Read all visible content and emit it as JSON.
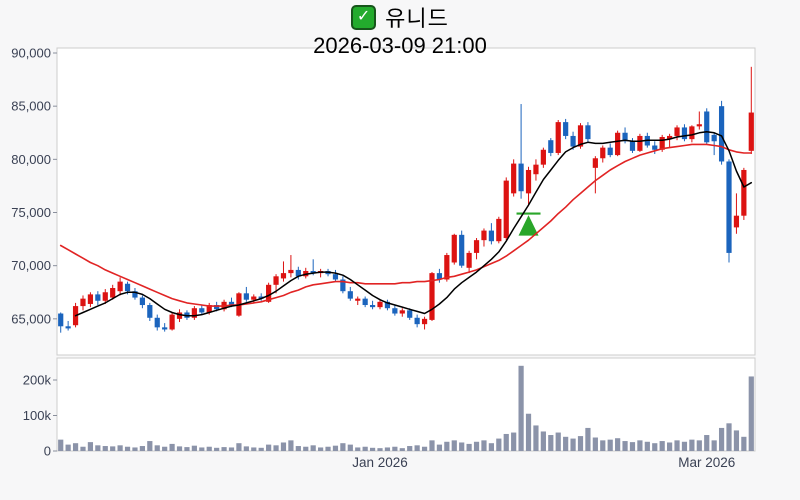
{
  "header": {
    "check_icon": "✓",
    "title": "유니드",
    "datetime": "2026-03-09 21:00"
  },
  "colors": {
    "up_candle": "#dc1312",
    "down_candle": "#1b64bd",
    "ma_short": "#000000",
    "ma_long": "#e12424",
    "volume_bar": "#8b93a9",
    "marker_green": "#2aa62a",
    "panel_border": "#cccccc",
    "panel_bg": "#ffffff",
    "page_bg": "#f7f7f8",
    "axis_text": "#3a4154",
    "title_text": "#000000",
    "check_bg": "#23ab2d"
  },
  "chart_data": {
    "type": "candlestick_with_volume",
    "title": "유니드",
    "subtitle": "2026-03-09 21:00",
    "legend_position": "none",
    "grid": false,
    "price_ylim": [
      61600,
      90470
    ],
    "price_yticks": [
      {
        "label": "90,000",
        "value": 90000
      },
      {
        "label": "85,000",
        "value": 85000
      },
      {
        "label": "80,000",
        "value": 80000
      },
      {
        "label": "75,000",
        "value": 75000
      },
      {
        "label": "70,000",
        "value": 70000
      },
      {
        "label": "65,000",
        "value": 65000
      }
    ],
    "volume_ylim": [
      0,
      262000
    ],
    "volume_yticks": [
      {
        "label": "200k",
        "value": 200000
      },
      {
        "label": "100k",
        "value": 100000
      },
      {
        "label": "0",
        "value": 0
      }
    ],
    "xticks": [
      {
        "label": "Jan 2026",
        "index": 43
      },
      {
        "label": "Mar 2026",
        "index": 87
      }
    ],
    "candles": [
      [
        65500,
        65600,
        63700,
        64300
      ],
      [
        64300,
        64800,
        63900,
        64100
      ],
      [
        64400,
        66500,
        64200,
        66200
      ],
      [
        66200,
        67200,
        65800,
        66900
      ],
      [
        66400,
        67500,
        66100,
        67300
      ],
      [
        67300,
        67600,
        66300,
        66700
      ],
      [
        66700,
        67800,
        66400,
        67500
      ],
      [
        67000,
        68200,
        66800,
        67900
      ],
      [
        67600,
        68900,
        67200,
        68500
      ],
      [
        68300,
        68500,
        67300,
        67600
      ],
      [
        67600,
        67900,
        66800,
        67000
      ],
      [
        67000,
        67200,
        66000,
        66300
      ],
      [
        66300,
        66500,
        64800,
        65100
      ],
      [
        65100,
        65400,
        63900,
        64200
      ],
      [
        64200,
        64600,
        63800,
        64000
      ],
      [
        64000,
        65600,
        63900,
        65400
      ],
      [
        65000,
        65900,
        64700,
        65600
      ],
      [
        65600,
        65800,
        64900,
        65100
      ],
      [
        65100,
        66200,
        64900,
        66000
      ],
      [
        66000,
        66300,
        65400,
        65600
      ],
      [
        65600,
        66500,
        65400,
        66300
      ],
      [
        66300,
        66600,
        65700,
        65900
      ],
      [
        65900,
        66800,
        65700,
        66600
      ],
      [
        66600,
        67000,
        66100,
        66300
      ],
      [
        65300,
        67500,
        65200,
        67400
      ],
      [
        67400,
        68000,
        66600,
        66800
      ],
      [
        66800,
        67300,
        66500,
        67100
      ],
      [
        67100,
        67400,
        66700,
        66900
      ],
      [
        66600,
        68400,
        66500,
        68200
      ],
      [
        68200,
        69200,
        67400,
        69000
      ],
      [
        68800,
        70400,
        68500,
        69300
      ],
      [
        69300,
        71000,
        68900,
        69600
      ],
      [
        69600,
        69900,
        68700,
        69000
      ],
      [
        69000,
        69800,
        68800,
        69500
      ],
      [
        69500,
        70600,
        69100,
        69300
      ],
      [
        69300,
        69700,
        68900,
        69500
      ],
      [
        69500,
        69700,
        69000,
        69200
      ],
      [
        69200,
        69600,
        68500,
        68700
      ],
      [
        68700,
        69000,
        67400,
        67600
      ],
      [
        67600,
        68000,
        66700,
        66900
      ],
      [
        66700,
        67100,
        66300,
        66900
      ],
      [
        66900,
        67100,
        66100,
        66300
      ],
      [
        66300,
        66700,
        65900,
        66100
      ],
      [
        66100,
        66800,
        65900,
        66600
      ],
      [
        66600,
        66800,
        65800,
        66000
      ],
      [
        66000,
        66300,
        65300,
        65500
      ],
      [
        65500,
        66000,
        65200,
        65800
      ],
      [
        65800,
        66000,
        64900,
        65100
      ],
      [
        65100,
        65400,
        64200,
        64500
      ],
      [
        64500,
        65200,
        64000,
        65000
      ],
      [
        64900,
        69400,
        64800,
        69300
      ],
      [
        69300,
        69700,
        68400,
        68700
      ],
      [
        68700,
        71200,
        68500,
        71000
      ],
      [
        70300,
        73000,
        70100,
        72900
      ],
      [
        72900,
        73300,
        69800,
        70000
      ],
      [
        69800,
        71400,
        69300,
        71200
      ],
      [
        71200,
        72600,
        70600,
        72400
      ],
      [
        72400,
        73500,
        71800,
        73300
      ],
      [
        73300,
        74000,
        72000,
        72300
      ],
      [
        72300,
        74600,
        72100,
        74400
      ],
      [
        72600,
        78300,
        72400,
        78000
      ],
      [
        76800,
        80000,
        76500,
        79600
      ],
      [
        79600,
        85200,
        76300,
        77000
      ],
      [
        76800,
        79300,
        75600,
        79000
      ],
      [
        78600,
        80000,
        78000,
        79500
      ],
      [
        79500,
        81100,
        79200,
        80900
      ],
      [
        81800,
        82000,
        80300,
        80600
      ],
      [
        80600,
        83700,
        80400,
        83500
      ],
      [
        83500,
        83800,
        81900,
        82200
      ],
      [
        82200,
        82600,
        80900,
        81200
      ],
      [
        81200,
        83400,
        81000,
        83200
      ],
      [
        83200,
        83500,
        81600,
        81900
      ],
      [
        79200,
        80300,
        76800,
        80100
      ],
      [
        80100,
        81300,
        79700,
        81100
      ],
      [
        81100,
        81500,
        80200,
        80400
      ],
      [
        80400,
        82700,
        80300,
        82500
      ],
      [
        82500,
        83000,
        81500,
        81700
      ],
      [
        81700,
        82000,
        80600,
        80800
      ],
      [
        80800,
        82400,
        80700,
        82200
      ],
      [
        82200,
        82500,
        81100,
        81300
      ],
      [
        81300,
        81700,
        80500,
        80900
      ],
      [
        80900,
        82300,
        80700,
        82100
      ],
      [
        81900,
        82400,
        81100,
        82200
      ],
      [
        82200,
        83200,
        81800,
        83000
      ],
      [
        83000,
        83300,
        81700,
        81900
      ],
      [
        81900,
        83200,
        81600,
        83100
      ],
      [
        83100,
        84500,
        82800,
        83300
      ],
      [
        84500,
        84800,
        81400,
        81600
      ],
      [
        82300,
        82500,
        80400,
        81700
      ],
      [
        85000,
        85500,
        79500,
        79800
      ],
      [
        79800,
        80000,
        70300,
        71200
      ],
      [
        73600,
        76800,
        73000,
        74700
      ],
      [
        74700,
        79200,
        74300,
        79000
      ],
      [
        80800,
        88700,
        80500,
        84400
      ]
    ],
    "volumes": [
      32000,
      18000,
      22000,
      12000,
      25000,
      16000,
      14000,
      13000,
      16000,
      12000,
      10000,
      14000,
      28000,
      16000,
      12000,
      20000,
      13000,
      11000,
      15000,
      10000,
      12000,
      9000,
      11000,
      10000,
      22000,
      13000,
      10000,
      9000,
      18000,
      16000,
      24000,
      30000,
      14000,
      12000,
      16000,
      10000,
      12000,
      15000,
      22000,
      18000,
      10000,
      12000,
      9000,
      8000,
      10000,
      12000,
      8000,
      14000,
      16000,
      12000,
      30000,
      18000,
      26000,
      30000,
      24000,
      20000,
      26000,
      30000,
      22000,
      35000,
      48000,
      52000,
      240000,
      105000,
      72000,
      55000,
      45000,
      52000,
      40000,
      35000,
      42000,
      65000,
      38000,
      30000,
      32000,
      36000,
      28000,
      25000,
      30000,
      26000,
      22000,
      28000,
      24000,
      30000,
      26000,
      32000,
      30000,
      45000,
      30000,
      65000,
      78000,
      58000,
      40000,
      210000
    ],
    "ma_short": [
      null,
      null,
      65300,
      65600,
      65900,
      66200,
      66500,
      66900,
      67300,
      67500,
      67500,
      67300,
      66900,
      66400,
      65900,
      65600,
      65400,
      65300,
      65300,
      65400,
      65600,
      65800,
      66000,
      66200,
      66300,
      66500,
      66700,
      66900,
      67200,
      67600,
      68100,
      68600,
      69000,
      69200,
      69300,
      69400,
      69400,
      69300,
      69100,
      68700,
      68200,
      67700,
      67200,
      66800,
      66500,
      66300,
      66100,
      65900,
      65700,
      65500,
      65900,
      66400,
      67000,
      67800,
      68400,
      68900,
      69400,
      70000,
      70600,
      71300,
      72300,
      73500,
      74600,
      75700,
      76900,
      78100,
      79000,
      79900,
      80700,
      81100,
      81400,
      81600,
      81500,
      81500,
      81600,
      81700,
      81800,
      81700,
      81700,
      81800,
      81800,
      81800,
      81900,
      82100,
      82200,
      82300,
      82500,
      82600,
      82500,
      82200,
      80800,
      78900,
      77400,
      77800
    ],
    "ma_long": [
      71900,
      71500,
      71100,
      70700,
      70300,
      70000,
      69600,
      69300,
      69000,
      68700,
      68400,
      68100,
      67800,
      67500,
      67200,
      66900,
      66700,
      66500,
      66400,
      66300,
      66200,
      66200,
      66200,
      66300,
      66300,
      66400,
      66500,
      66600,
      66800,
      67000,
      67200,
      67500,
      67700,
      68000,
      68200,
      68300,
      68400,
      68500,
      68500,
      68400,
      68400,
      68300,
      68300,
      68300,
      68300,
      68300,
      68400,
      68400,
      68500,
      68500,
      68600,
      68700,
      68900,
      69000,
      69200,
      69400,
      69600,
      69900,
      70200,
      70500,
      70900,
      71400,
      71900,
      72400,
      73000,
      73600,
      74200,
      74900,
      75500,
      76200,
      76800,
      77400,
      78000,
      78500,
      79000,
      79400,
      79800,
      80100,
      80400,
      80600,
      80800,
      81000,
      81100,
      81200,
      81300,
      81400,
      81400,
      81400,
      81300,
      81200,
      80900,
      80700,
      80600,
      80600
    ],
    "marker": {
      "type": "up-triangle",
      "index": 63,
      "price": 74900
    }
  }
}
